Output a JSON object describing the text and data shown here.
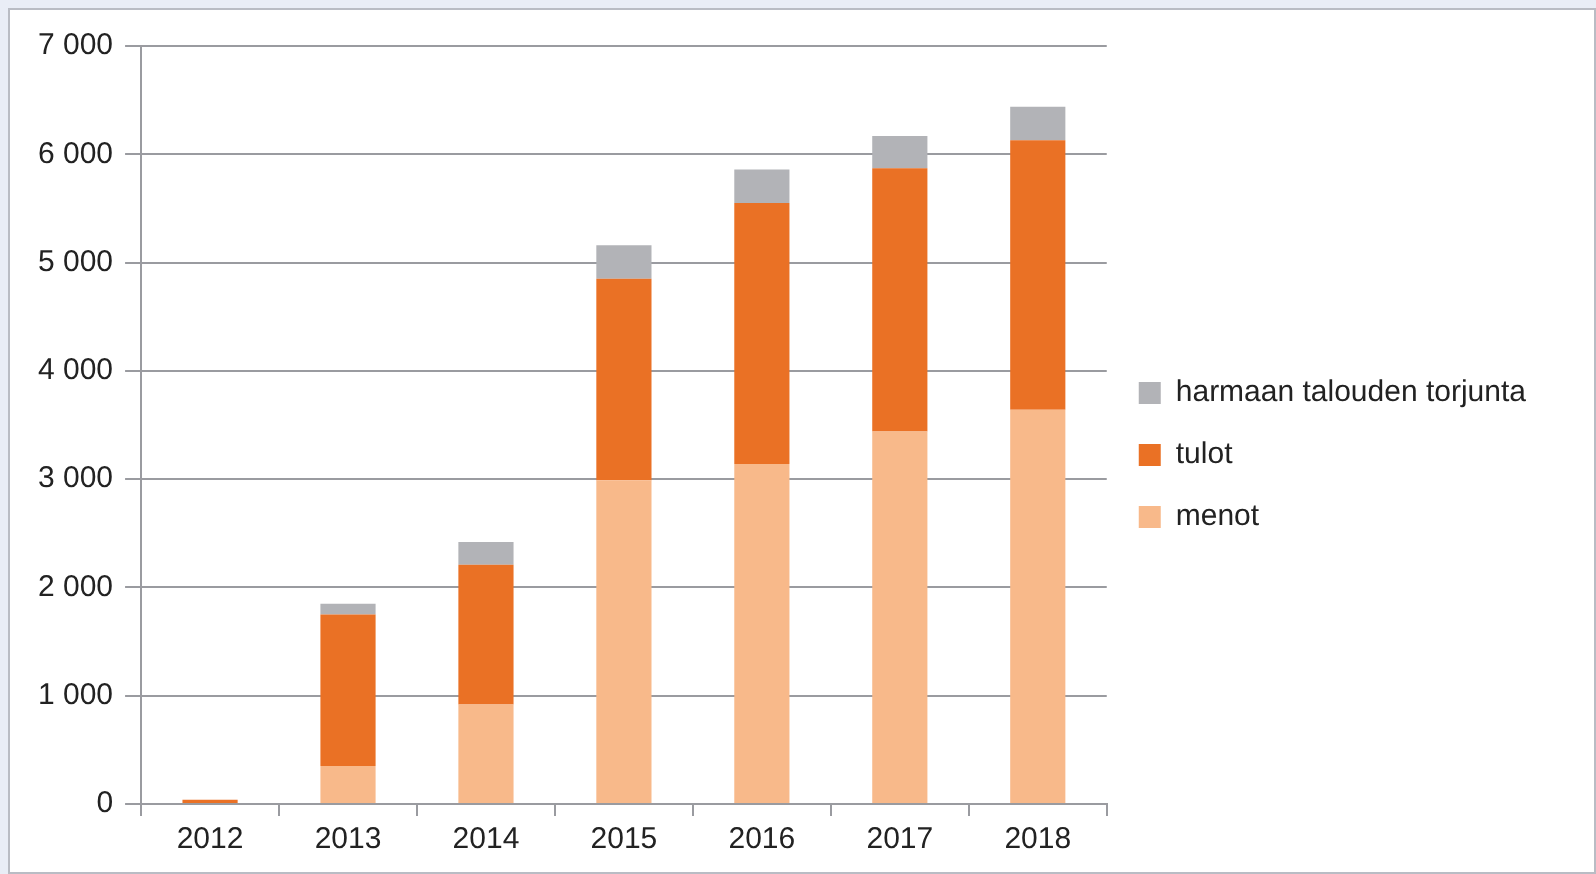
{
  "chart_data": {
    "type": "bar",
    "stacked": true,
    "categories": [
      "2012",
      "2013",
      "2014",
      "2015",
      "2016",
      "2017",
      "2018"
    ],
    "series": [
      {
        "name": "menot",
        "color": "#f8b98a",
        "values": [
          0,
          350,
          920,
          2990,
          3140,
          3440,
          3640
        ]
      },
      {
        "name": "tulot",
        "color": "#ea7125",
        "values": [
          40,
          1400,
          1290,
          1860,
          2410,
          2430,
          2490
        ]
      },
      {
        "name": "harmaan talouden torjunta",
        "color": "#b2b3b7",
        "values": [
          0,
          100,
          210,
          310,
          310,
          300,
          310
        ]
      }
    ],
    "ylim": [
      0,
      7000
    ],
    "yticks": [
      {
        "value": 0,
        "label": "0"
      },
      {
        "value": 1000,
        "label": "1 000"
      },
      {
        "value": 2000,
        "label": "2 000"
      },
      {
        "value": 3000,
        "label": "3 000"
      },
      {
        "value": 4000,
        "label": "4 000"
      },
      {
        "value": 5000,
        "label": "5 000"
      },
      {
        "value": 6000,
        "label": "6 000"
      },
      {
        "value": 7000,
        "label": "7 000"
      }
    ],
    "grid": "y",
    "legend": "right"
  }
}
